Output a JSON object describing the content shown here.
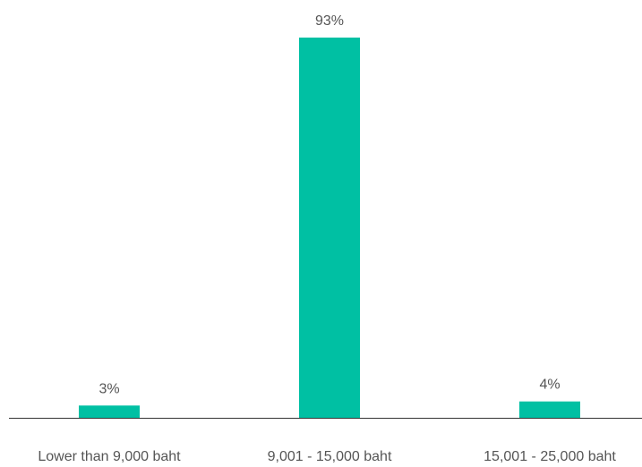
{
  "chart_data": {
    "type": "bar",
    "categories": [
      "Lower than 9,000 baht",
      "9,001 - 15,000 baht",
      "15,001 - 25,000 baht"
    ],
    "values": [
      3,
      93,
      4
    ],
    "data_labels": [
      "3%",
      "93%",
      "4%"
    ],
    "ylim": [
      0,
      100
    ],
    "grid": false,
    "legend": "none",
    "colors": {
      "bar": "#00c0a3",
      "axis": "#333333",
      "text": "#555555"
    }
  }
}
